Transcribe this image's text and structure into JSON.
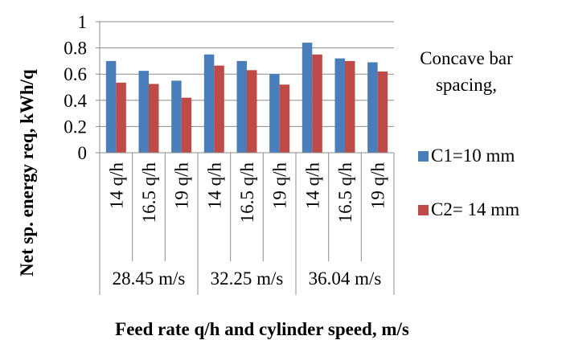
{
  "chart_data": {
    "type": "bar",
    "groups": [
      {
        "label": "28.45 m/s",
        "categories": [
          "14 q/h",
          "16.5 q/h",
          "19 q/h"
        ]
      },
      {
        "label": "32.25 m/s",
        "categories": [
          "14 q/h",
          "16.5 q/h",
          "19 q/h"
        ]
      },
      {
        "label": "36.04 m/s",
        "categories": [
          "14 q/h",
          "16.5 q/h",
          "19 q/h"
        ]
      }
    ],
    "series": [
      {
        "name": "C1=10 mm",
        "color": "#4a7ebb",
        "values": [
          0.7,
          0.625,
          0.55,
          0.75,
          0.7,
          0.6,
          0.84,
          0.72,
          0.69
        ]
      },
      {
        "name": "C2= 14 mm",
        "color": "#be4b48",
        "values": [
          0.535,
          0.525,
          0.42,
          0.665,
          0.63,
          0.52,
          0.75,
          0.7,
          0.62
        ]
      }
    ],
    "yticks": [
      "0",
      "0.2",
      "0.4",
      "0.6",
      "0.8",
      "1"
    ],
    "ylim": [
      0,
      1
    ],
    "ylabel": "Net sp. energy req, kWh/q",
    "xlabel": "Feed rate q/h and  cylinder speed, m/s",
    "legend_title": "Concave bar spacing,",
    "legend_position": "right",
    "grid": true
  }
}
